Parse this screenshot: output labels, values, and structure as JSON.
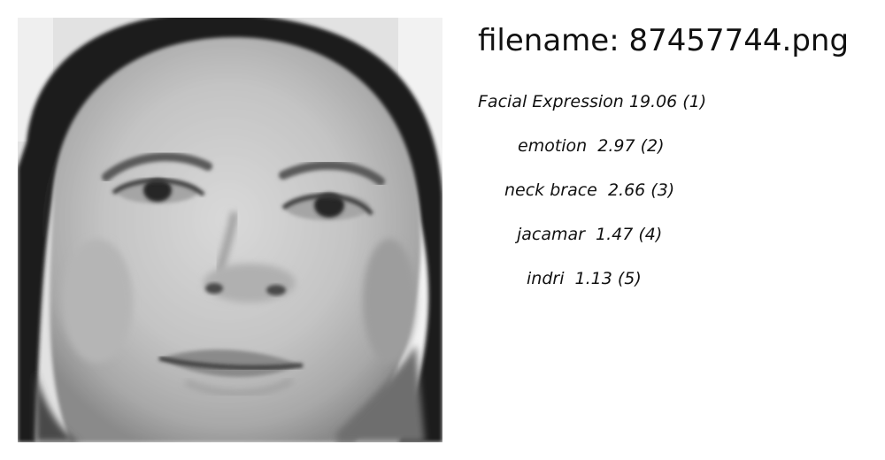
{
  "header": {
    "filename_text": "filename: 87457744.png"
  },
  "photo": {
    "icon": "face-photo"
  },
  "predictions": [
    {
      "text": "Facial Expression 19.06 (1)",
      "indent": 0
    },
    {
      "text": "emotion  2.97 (2)",
      "indent": 45
    },
    {
      "text": "neck brace  2.66 (3)",
      "indent": 30
    },
    {
      "text": "jacamar  1.47 (4)",
      "indent": 44
    },
    {
      "text": "indri  1.13 (5)",
      "indent": 55
    }
  ]
}
